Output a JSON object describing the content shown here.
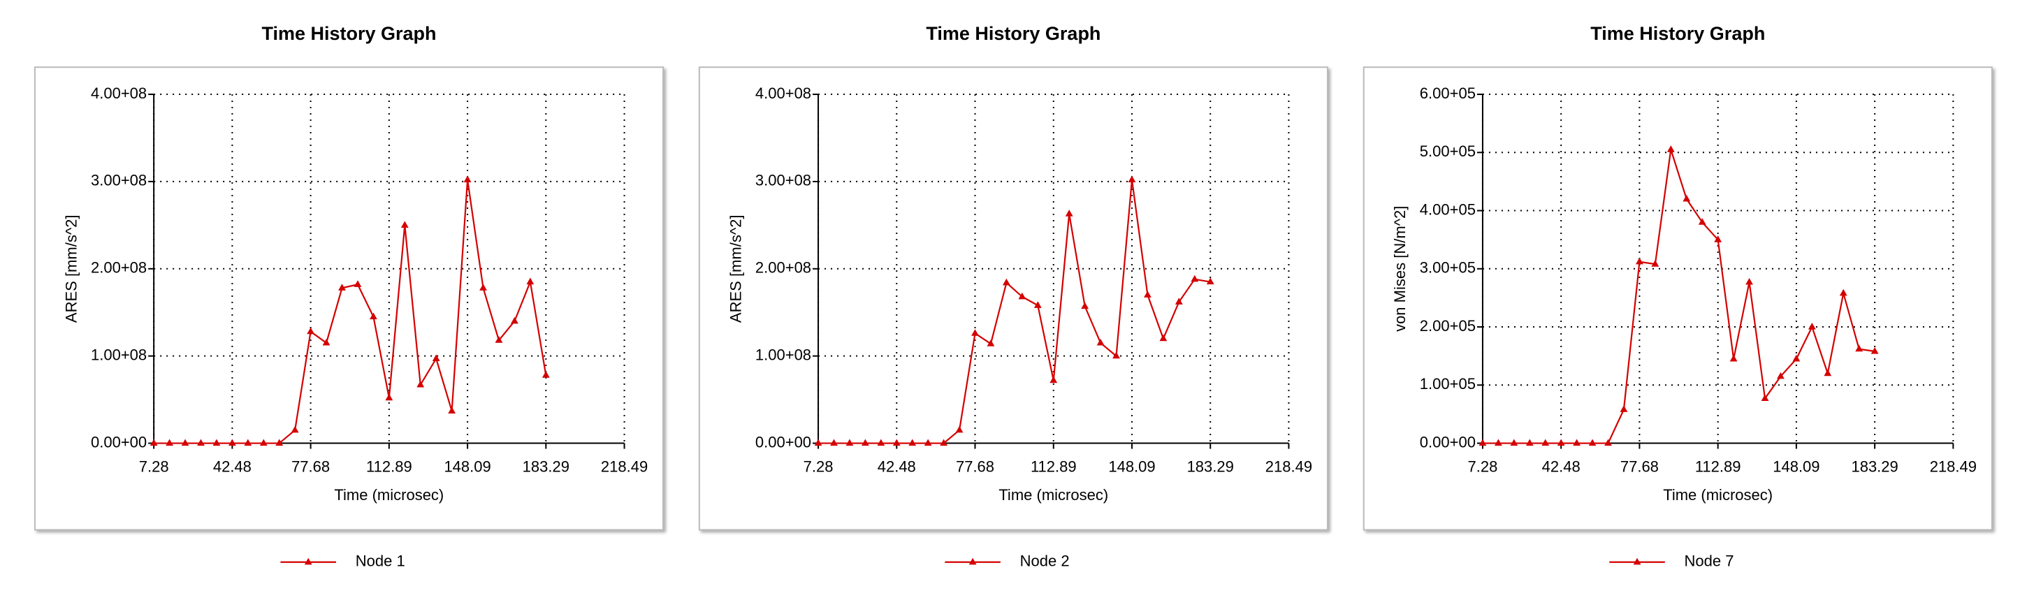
{
  "chart_data": [
    {
      "type": "line",
      "title": "Time History Graph",
      "x_label": "Time (microsec)",
      "y_label": "ARES  [mm/s^2]",
      "x": [
        7.28,
        14.32,
        21.36,
        28.4,
        35.44,
        42.48,
        49.52,
        56.56,
        63.6,
        70.64,
        77.68,
        84.72,
        91.76,
        98.81,
        105.85,
        112.89,
        119.93,
        126.97,
        134.01,
        141.05,
        148.09,
        155.13,
        162.17,
        169.21,
        176.25,
        183.29
      ],
      "series": [
        {
          "name": "Node 1",
          "color": "#d40000",
          "values": [
            0,
            0,
            0,
            0,
            0,
            0,
            0,
            0,
            0,
            15000000,
            128000000,
            115000000,
            178000000,
            182000000,
            145000000,
            52000000,
            250000000,
            67000000,
            97000000,
            37000000,
            302000000,
            178000000,
            118000000,
            140000000,
            185000000,
            78000000
          ]
        }
      ],
      "xlim": [
        7.28,
        218.49
      ],
      "xticks": [
        7.28,
        42.48,
        77.68,
        112.89,
        148.09,
        183.29,
        218.49
      ],
      "ylim": [
        0,
        400000000
      ],
      "yticks": [
        {
          "value": 0,
          "label": "0.00+00"
        },
        {
          "value": 100000000,
          "label": "1.00+08"
        },
        {
          "value": 200000000,
          "label": "2.00+08"
        },
        {
          "value": 300000000,
          "label": "3.00+08"
        },
        {
          "value": 400000000,
          "label": "4.00+08"
        }
      ],
      "grid": true,
      "legend": "bottom"
    },
    {
      "type": "line",
      "title": "Time History Graph",
      "x_label": "Time (microsec)",
      "y_label": "ARES  [mm/s^2]",
      "x": [
        7.28,
        14.32,
        21.36,
        28.4,
        35.44,
        42.48,
        49.52,
        56.56,
        63.6,
        70.64,
        77.68,
        84.72,
        91.76,
        98.81,
        105.85,
        112.89,
        119.93,
        126.97,
        134.01,
        141.05,
        148.09,
        155.13,
        162.17,
        169.21,
        176.25,
        183.29
      ],
      "series": [
        {
          "name": "Node 2",
          "color": "#d40000",
          "values": [
            0,
            0,
            0,
            0,
            0,
            0,
            0,
            0,
            0,
            15000000,
            126000000,
            114000000,
            184000000,
            168000000,
            158000000,
            72000000,
            263000000,
            157000000,
            115000000,
            100000000,
            302000000,
            170000000,
            120000000,
            162000000,
            188000000,
            185000000
          ]
        }
      ],
      "xlim": [
        7.28,
        218.49
      ],
      "xticks": [
        7.28,
        42.48,
        77.68,
        112.89,
        148.09,
        183.29,
        218.49
      ],
      "ylim": [
        0,
        400000000
      ],
      "yticks": [
        {
          "value": 0,
          "label": "0.00+00"
        },
        {
          "value": 100000000,
          "label": "1.00+08"
        },
        {
          "value": 200000000,
          "label": "2.00+08"
        },
        {
          "value": 300000000,
          "label": "3.00+08"
        },
        {
          "value": 400000000,
          "label": "4.00+08"
        }
      ],
      "grid": true,
      "legend": "bottom"
    },
    {
      "type": "line",
      "title": "Time History Graph",
      "x_label": "Time (microsec)",
      "y_label": "von Mises [N/m^2]",
      "x": [
        7.28,
        14.32,
        21.36,
        28.4,
        35.44,
        42.48,
        49.52,
        56.56,
        63.6,
        70.64,
        77.68,
        84.72,
        91.76,
        98.81,
        105.85,
        112.89,
        119.93,
        126.97,
        134.01,
        141.05,
        148.09,
        155.13,
        162.17,
        169.21,
        176.25,
        183.29
      ],
      "series": [
        {
          "name": "Node 7",
          "color": "#d40000",
          "values": [
            0,
            0,
            0,
            0,
            0,
            0,
            0,
            0,
            0,
            58000,
            312000,
            308000,
            505000,
            420000,
            380000,
            350000,
            145000,
            277000,
            77000,
            115000,
            145000,
            200000,
            120000,
            258000,
            162000,
            158000
          ]
        }
      ],
      "xlim": [
        7.28,
        218.49
      ],
      "xticks": [
        7.28,
        42.48,
        77.68,
        112.89,
        148.09,
        183.29,
        218.49
      ],
      "ylim": [
        0,
        600000
      ],
      "yticks": [
        {
          "value": 0,
          "label": "0.00+00"
        },
        {
          "value": 100000,
          "label": "1.00+05"
        },
        {
          "value": 200000,
          "label": "2.00+05"
        },
        {
          "value": 300000,
          "label": "3.00+05"
        },
        {
          "value": 400000,
          "label": "4.00+05"
        },
        {
          "value": 500000,
          "label": "5.00+05"
        },
        {
          "value": 600000,
          "label": "6.00+05"
        }
      ],
      "grid": true,
      "legend": "bottom"
    }
  ]
}
